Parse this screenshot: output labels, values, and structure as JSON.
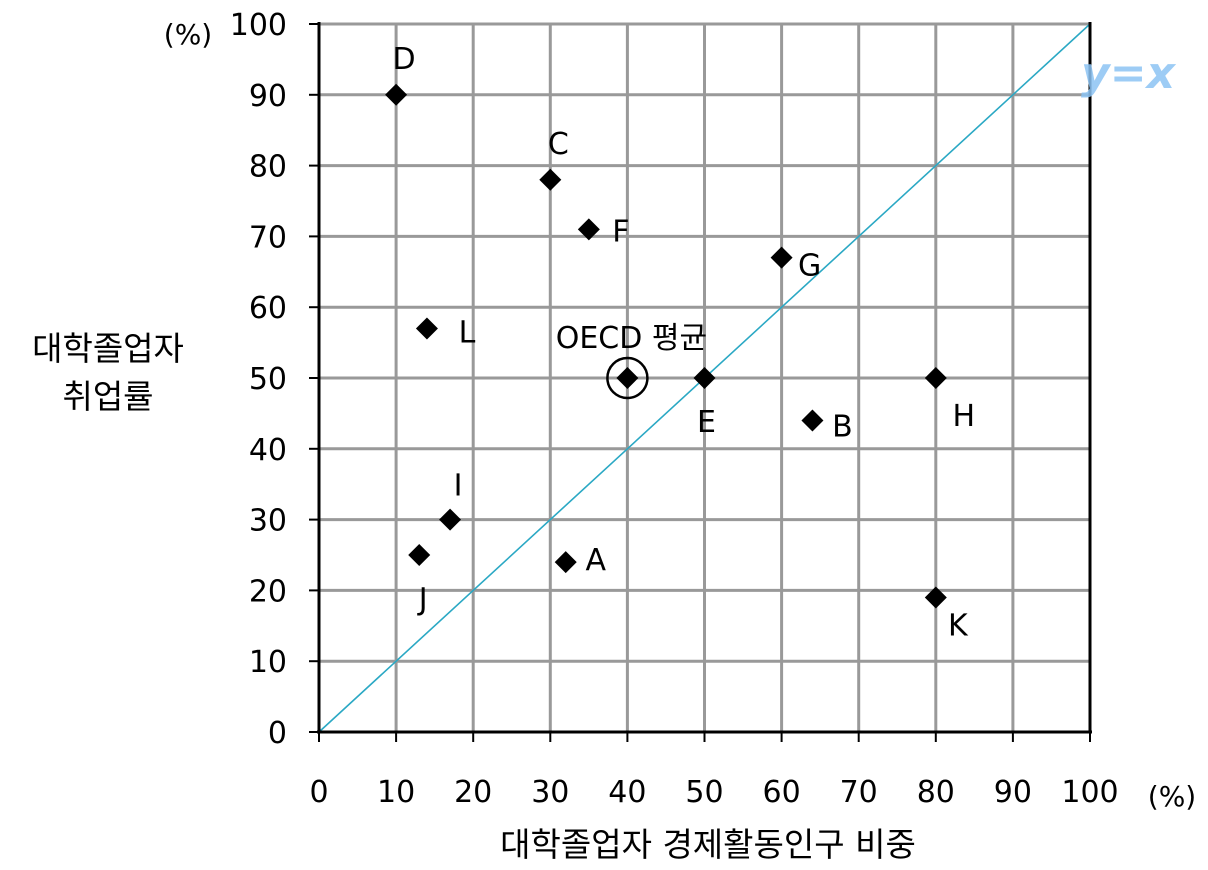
{
  "chart_data": {
    "type": "scatter",
    "xlabel": "대학졸업자 경제활동인구 비중",
    "ylabel_line1": "대학졸업자",
    "ylabel_line2": "취업률",
    "x_unit": "(%)",
    "y_unit": "(%)",
    "xlim": [
      0,
      100
    ],
    "ylim": [
      0,
      100
    ],
    "grid": true,
    "x_ticks": [
      "0",
      "10",
      "20",
      "30",
      "40",
      "50",
      "60",
      "70",
      "80",
      "90",
      "100"
    ],
    "y_ticks": [
      "0",
      "10",
      "20",
      "30",
      "40",
      "50",
      "60",
      "70",
      "80",
      "90",
      "100"
    ],
    "reference_line": {
      "label": "y=x",
      "from": [
        0,
        0
      ],
      "to": [
        100,
        100
      ],
      "color": "#2aa8c4"
    },
    "points": [
      {
        "label": "A",
        "x": 32,
        "y": 24
      },
      {
        "label": "B",
        "x": 64,
        "y": 44
      },
      {
        "label": "C",
        "x": 30,
        "y": 78
      },
      {
        "label": "D",
        "x": 10,
        "y": 90
      },
      {
        "label": "E",
        "x": 50,
        "y": 50
      },
      {
        "label": "F",
        "x": 35,
        "y": 71
      },
      {
        "label": "G",
        "x": 60,
        "y": 67
      },
      {
        "label": "H",
        "x": 80,
        "y": 50
      },
      {
        "label": "I",
        "x": 17,
        "y": 30
      },
      {
        "label": "J",
        "x": 13,
        "y": 25
      },
      {
        "label": "K",
        "x": 80,
        "y": 19
      },
      {
        "label": "L",
        "x": 14,
        "y": 57
      }
    ],
    "highlight": {
      "label": "OECD 평균",
      "x": 40,
      "y": 50
    },
    "colors": {
      "grid": "#999999",
      "marker": "#000000",
      "reference": "#2aa8c4",
      "handnote": "#8cc4f4"
    }
  }
}
